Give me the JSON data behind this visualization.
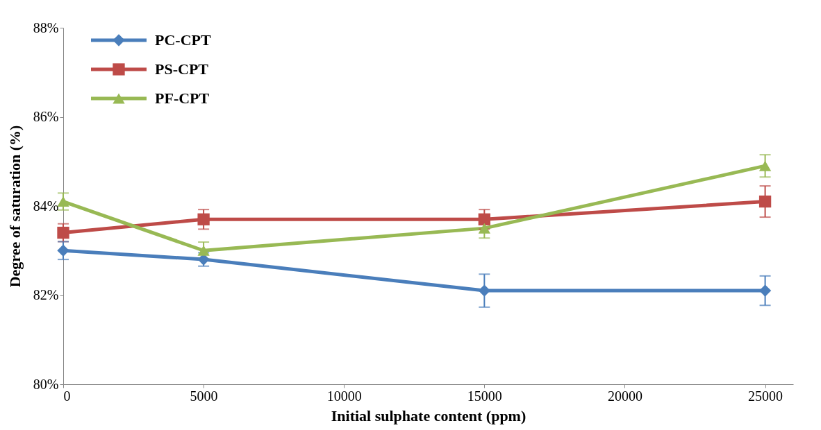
{
  "chart_data": {
    "type": "line",
    "xlabel": "Initial sulphate content (ppm)",
    "ylabel": "Degree of saturation  (%)",
    "xlim": [
      0,
      26000
    ],
    "xticks": [
      0,
      5000,
      10000,
      15000,
      20000,
      25000
    ],
    "ylim": [
      80,
      88
    ],
    "yticks": [
      {
        "value": 80,
        "label": "80%"
      },
      {
        "value": 82,
        "label": "82%"
      },
      {
        "value": 84,
        "label": "84%"
      },
      {
        "value": 86,
        "label": "86%"
      },
      {
        "value": 88,
        "label": "88%"
      }
    ],
    "x": [
      0,
      5000,
      15000,
      25000
    ],
    "grid": false,
    "legend": "top left",
    "line_style": "solid",
    "series": [
      {
        "name": "PC-CPT",
        "color": "#4a7ebb",
        "marker": "diamond",
        "values": [
          83.0,
          82.8,
          82.1,
          82.1
        ],
        "errors": [
          0.2,
          0.15,
          0.37,
          0.33
        ]
      },
      {
        "name": "PS-CPT",
        "color": "#be4b48",
        "marker": "square",
        "values": [
          83.4,
          83.7,
          83.7,
          84.1
        ],
        "errors": [
          0.2,
          0.22,
          0.22,
          0.35
        ]
      },
      {
        "name": "PF-CPT",
        "color": "#98b954",
        "marker": "triangle",
        "values": [
          84.1,
          83.0,
          83.5,
          84.9
        ],
        "errors": [
          0.19,
          0.19,
          0.22,
          0.25
        ]
      }
    ]
  }
}
